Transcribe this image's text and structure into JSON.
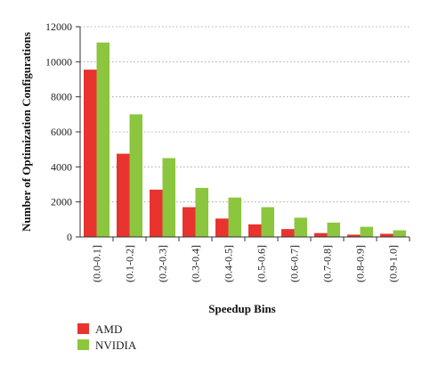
{
  "chart_data": {
    "type": "bar",
    "categories": [
      "(0.0-0.1]",
      "(0.1-0.2]",
      "(0.2-0.3]",
      "(0.3-0.4]",
      "(0.4-0.5]",
      "(0.5-0.6]",
      "(0.6-0.7]",
      "(0.7-0.8]",
      "(0.8-0.9]",
      "(0.9-1.0]"
    ],
    "series": [
      {
        "name": "AMD",
        "color": "#e8332e",
        "values": [
          9550,
          4750,
          2700,
          1700,
          1050,
          720,
          450,
          220,
          130,
          180
        ]
      },
      {
        "name": "NVIDIA",
        "color": "#8cc63f",
        "values": [
          11100,
          7000,
          4500,
          2800,
          2250,
          1700,
          1100,
          820,
          580,
          380
        ]
      }
    ],
    "title": "",
    "xlabel": "Speedup Bins",
    "ylabel": "Number of Optimization Configurations",
    "ylim": [
      0,
      12000
    ],
    "yticks": [
      0,
      2000,
      4000,
      6000,
      8000,
      10000,
      12000
    ],
    "grid": "horizontal dotted",
    "legend_position": "bottom-left"
  }
}
